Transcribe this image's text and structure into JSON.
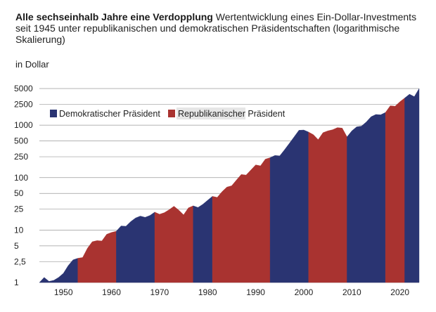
{
  "header": {
    "title": "Alle sechseinhalb Jahre eine Verdopplung",
    "subtitle": "Wertentwicklung eines Ein-Dollar-Investments seit 1945 unter republikanischen und demokratischen Präsidentschaften (logarithmische Skalierung)"
  },
  "unit_label": "in Dollar",
  "colors": {
    "democratic": "#2a3472",
    "republican": "#a93330",
    "grid": "#9a9a9a"
  },
  "chart_data": {
    "type": "area",
    "title": "Alle sechseinhalb Jahre eine Verdopplung",
    "ylabel": "in Dollar",
    "y_scale": "log",
    "ylim": [
      1,
      5000
    ],
    "xlim": [
      1945,
      2024
    ],
    "y_ticks": [
      1,
      2.5,
      5,
      10,
      25,
      50,
      100,
      250,
      500,
      1000,
      2500,
      5000
    ],
    "y_tick_labels": [
      "1",
      "2,5",
      "5",
      "10",
      "25",
      "50",
      "100",
      "250",
      "500",
      "1000",
      "2500",
      "5000"
    ],
    "x_ticks": [
      1950,
      1960,
      1970,
      1980,
      1990,
      2000,
      2010,
      2020
    ],
    "grid": true,
    "legend": "top-left",
    "series": [
      {
        "name": "Demokratischer Präsident",
        "color": "#2a3472"
      },
      {
        "name": "Republikanischer Präsident",
        "color": "#a93330"
      }
    ],
    "periods": [
      {
        "start": 1945,
        "end": 1953,
        "party": "Demokratischer Präsident"
      },
      {
        "start": 1953,
        "end": 1961,
        "party": "Republikanischer Präsident"
      },
      {
        "start": 1961,
        "end": 1969,
        "party": "Demokratischer Präsident"
      },
      {
        "start": 1969,
        "end": 1977,
        "party": "Republikanischer Präsident"
      },
      {
        "start": 1977,
        "end": 1981,
        "party": "Demokratischer Präsident"
      },
      {
        "start": 1981,
        "end": 1993,
        "party": "Republikanischer Präsident"
      },
      {
        "start": 1993,
        "end": 2001,
        "party": "Demokratischer Präsident"
      },
      {
        "start": 2001,
        "end": 2009,
        "party": "Republikanischer Präsident"
      },
      {
        "start": 2009,
        "end": 2017,
        "party": "Demokratischer Präsident"
      },
      {
        "start": 2017,
        "end": 2021,
        "party": "Republikanischer Präsident"
      },
      {
        "start": 2021,
        "end": 2024,
        "party": "Demokratischer Präsident"
      }
    ],
    "values": [
      {
        "x": 1945,
        "y": 1.0
      },
      {
        "x": 1946,
        "y": 1.25
      },
      {
        "x": 1947,
        "y": 1.05
      },
      {
        "x": 1948,
        "y": 1.1
      },
      {
        "x": 1949,
        "y": 1.25
      },
      {
        "x": 1950,
        "y": 1.5
      },
      {
        "x": 1951,
        "y": 2.1
      },
      {
        "x": 1952,
        "y": 2.7
      },
      {
        "x": 1953,
        "y": 2.9
      },
      {
        "x": 1954,
        "y": 3.0
      },
      {
        "x": 1955,
        "y": 4.5
      },
      {
        "x": 1956,
        "y": 6.0
      },
      {
        "x": 1957,
        "y": 6.3
      },
      {
        "x": 1958,
        "y": 6.2
      },
      {
        "x": 1959,
        "y": 8.3
      },
      {
        "x": 1960,
        "y": 9.0
      },
      {
        "x": 1961,
        "y": 9.5
      },
      {
        "x": 1962,
        "y": 12.0
      },
      {
        "x": 1963,
        "y": 11.8
      },
      {
        "x": 1964,
        "y": 14.5
      },
      {
        "x": 1965,
        "y": 17.0
      },
      {
        "x": 1966,
        "y": 18.5
      },
      {
        "x": 1967,
        "y": 17.5
      },
      {
        "x": 1968,
        "y": 19.0
      },
      {
        "x": 1969,
        "y": 22.0
      },
      {
        "x": 1970,
        "y": 20.0
      },
      {
        "x": 1971,
        "y": 21.5
      },
      {
        "x": 1972,
        "y": 24.5
      },
      {
        "x": 1973,
        "y": 28.5
      },
      {
        "x": 1974,
        "y": 24.0
      },
      {
        "x": 1975,
        "y": 19.5
      },
      {
        "x": 1976,
        "y": 26.5
      },
      {
        "x": 1977,
        "y": 29.0
      },
      {
        "x": 1978,
        "y": 27.0
      },
      {
        "x": 1979,
        "y": 31.0
      },
      {
        "x": 1980,
        "y": 37.0
      },
      {
        "x": 1981,
        "y": 44.0
      },
      {
        "x": 1982,
        "y": 42.0
      },
      {
        "x": 1983,
        "y": 54.0
      },
      {
        "x": 1984,
        "y": 66.0
      },
      {
        "x": 1985,
        "y": 70.0
      },
      {
        "x": 1986,
        "y": 90.0
      },
      {
        "x": 1987,
        "y": 115.0
      },
      {
        "x": 1988,
        "y": 112.0
      },
      {
        "x": 1989,
        "y": 140.0
      },
      {
        "x": 1990,
        "y": 175.0
      },
      {
        "x": 1991,
        "y": 168.0
      },
      {
        "x": 1992,
        "y": 225.0
      },
      {
        "x": 1993,
        "y": 240.0
      },
      {
        "x": 1994,
        "y": 265.0
      },
      {
        "x": 1995,
        "y": 260.0
      },
      {
        "x": 1996,
        "y": 340.0
      },
      {
        "x": 1997,
        "y": 450.0
      },
      {
        "x": 1998,
        "y": 600.0
      },
      {
        "x": 1999,
        "y": 800.0
      },
      {
        "x": 2000,
        "y": 810.0
      },
      {
        "x": 2001,
        "y": 740.0
      },
      {
        "x": 2002,
        "y": 660.0
      },
      {
        "x": 2003,
        "y": 530.0
      },
      {
        "x": 2004,
        "y": 720.0
      },
      {
        "x": 2005,
        "y": 780.0
      },
      {
        "x": 2006,
        "y": 820.0
      },
      {
        "x": 2007,
        "y": 900.0
      },
      {
        "x": 2008,
        "y": 880.0
      },
      {
        "x": 2009,
        "y": 600.0
      },
      {
        "x": 2010,
        "y": 780.0
      },
      {
        "x": 2011,
        "y": 930.0
      },
      {
        "x": 2012,
        "y": 960.0
      },
      {
        "x": 2013,
        "y": 1150.0
      },
      {
        "x": 2014,
        "y": 1450.0
      },
      {
        "x": 2015,
        "y": 1600.0
      },
      {
        "x": 2016,
        "y": 1580.0
      },
      {
        "x": 2017,
        "y": 1750.0
      },
      {
        "x": 2018,
        "y": 2350.0
      },
      {
        "x": 2019,
        "y": 2300.0
      },
      {
        "x": 2020,
        "y": 2800.0
      },
      {
        "x": 2021,
        "y": 3300.0
      },
      {
        "x": 2022,
        "y": 3900.0
      },
      {
        "x": 2023,
        "y": 3500.0
      },
      {
        "x": 2024,
        "y": 5000.0
      }
    ]
  }
}
